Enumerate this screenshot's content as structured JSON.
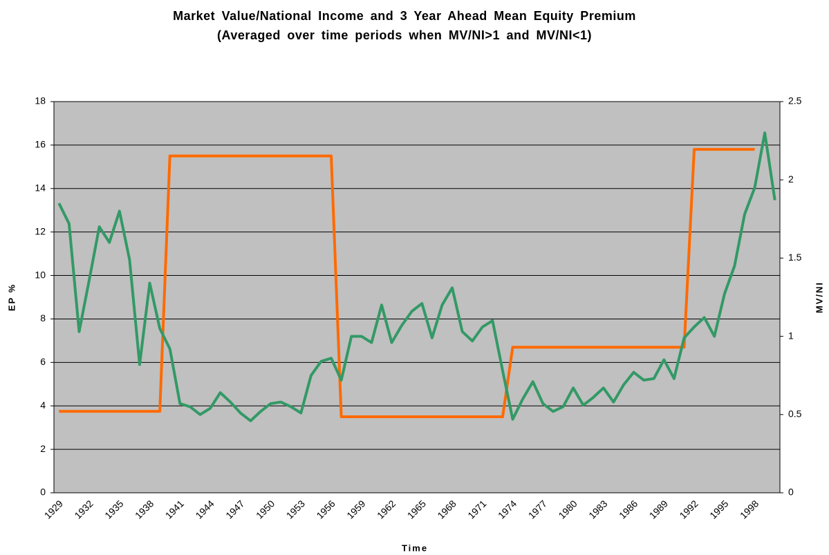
{
  "chart_data": {
    "type": "line",
    "title": "Market Value/National Income and 3 Year Ahead Mean Equity Premium",
    "subtitle": "(Averaged over time periods when MV/NI>1 and MV/NI<1)",
    "x_label": "Time",
    "y_label": "EP %",
    "y2_label": "MV/NI",
    "categories": [
      "1929",
      null,
      null,
      "1932",
      null,
      null,
      "1935",
      null,
      null,
      "1938",
      null,
      null,
      "1941",
      null,
      null,
      "1944",
      null,
      null,
      "1947",
      null,
      null,
      "1950",
      null,
      null,
      "1953",
      null,
      null,
      "1956",
      null,
      null,
      "1959",
      null,
      null,
      "1962",
      null,
      null,
      "1965",
      null,
      null,
      "1968",
      null,
      null,
      "1971",
      null,
      null,
      "1974",
      null,
      null,
      "1977",
      null,
      null,
      "1980",
      null,
      null,
      "1983",
      null,
      null,
      "1986",
      null,
      null,
      "1989",
      null,
      null,
      "1992",
      null,
      null,
      "1995",
      null,
      null,
      "1998",
      null,
      null
    ],
    "series": [
      {
        "color": "#ff6a00",
        "axis": "y",
        "values": [
          3.75,
          3.75,
          3.75,
          3.75,
          3.75,
          3.75,
          3.75,
          3.75,
          3.75,
          3.75,
          3.75,
          15.5,
          15.5,
          15.5,
          15.5,
          15.5,
          15.5,
          15.5,
          15.5,
          15.5,
          15.5,
          15.5,
          15.5,
          15.5,
          15.5,
          15.5,
          15.5,
          15.5,
          3.5,
          3.5,
          3.5,
          3.5,
          3.5,
          3.5,
          3.5,
          3.5,
          3.5,
          3.5,
          3.5,
          3.5,
          3.5,
          3.5,
          3.5,
          3.5,
          3.5,
          6.7,
          6.7,
          6.7,
          6.7,
          6.7,
          6.7,
          6.7,
          6.7,
          6.7,
          6.7,
          6.7,
          6.7,
          6.7,
          6.7,
          6.7,
          6.7,
          6.7,
          6.7,
          15.8,
          15.8,
          15.8,
          15.8,
          15.8,
          15.8,
          15.8,
          null,
          null
        ]
      },
      {
        "color": "#339966",
        "axis": "y2",
        "values": [
          1.85,
          1.72,
          1.03,
          1.36,
          1.7,
          1.6,
          1.8,
          1.49,
          0.82,
          1.34,
          1.05,
          0.92,
          0.57,
          0.55,
          0.5,
          0.54,
          0.64,
          0.58,
          0.51,
          0.46,
          0.52,
          0.57,
          0.58,
          0.55,
          0.51,
          0.75,
          0.84,
          0.86,
          0.72,
          1.0,
          1.0,
          0.96,
          1.2,
          0.96,
          1.07,
          1.16,
          1.21,
          0.99,
          1.2,
          1.31,
          1.03,
          0.97,
          1.06,
          1.1,
          0.78,
          0.47,
          0.6,
          0.71,
          0.57,
          0.52,
          0.55,
          0.67,
          0.56,
          0.61,
          0.67,
          0.58,
          0.69,
          0.77,
          0.72,
          0.73,
          0.85,
          0.73,
          0.99,
          1.06,
          1.12,
          1.0,
          1.27,
          1.45,
          1.78,
          1.95,
          2.3,
          1.87
        ]
      }
    ],
    "ylim": [
      0,
      18
    ],
    "yticks": [
      0,
      2,
      4,
      6,
      8,
      10,
      12,
      14,
      16,
      18
    ],
    "y2lim": [
      0,
      2.5
    ],
    "y2ticks": [
      0,
      0.5,
      1,
      1.5,
      2,
      2.5
    ],
    "grid": true,
    "plot_background": "#c0c0c0"
  }
}
